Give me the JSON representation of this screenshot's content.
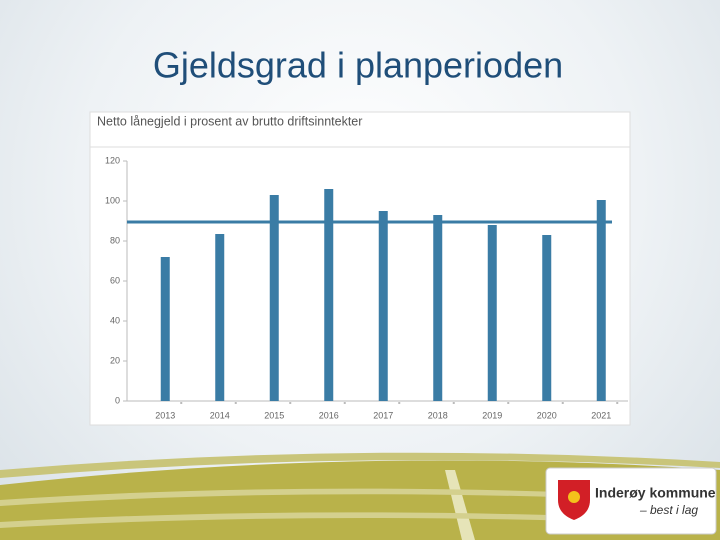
{
  "slide_title": "Gjeldsgrad i planperioden",
  "logo": {
    "name": "Inderøy kommune",
    "tagline": "– best i lag"
  },
  "chart_data": {
    "type": "bar",
    "title": "Netto lånegjeld i prosent av brutto driftsinntekter",
    "categories": [
      "2013",
      "2014",
      "2015",
      "2016",
      "2017",
      "2018",
      "2019",
      "2020",
      "2021"
    ],
    "values": [
      72,
      83.5,
      103,
      106,
      95,
      93,
      88,
      83,
      100.5
    ],
    "color": "#3a7ca5",
    "reference_line": 89.5,
    "reference_color": "#3a7ca5",
    "ylim": [
      0,
      120
    ],
    "yticks": [
      0,
      20,
      40,
      60,
      80,
      100,
      120
    ],
    "grid": false
  }
}
